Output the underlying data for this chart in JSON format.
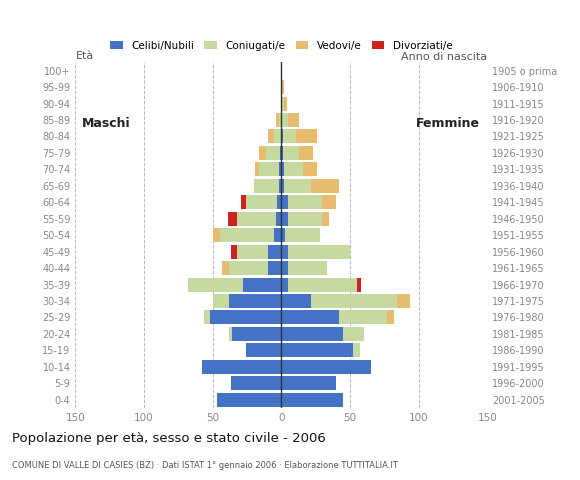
{
  "age_groups": [
    "0-4",
    "5-9",
    "10-14",
    "15-19",
    "20-24",
    "25-29",
    "30-34",
    "35-39",
    "40-44",
    "45-49",
    "50-54",
    "55-59",
    "60-64",
    "65-69",
    "70-74",
    "75-79",
    "80-84",
    "85-89",
    "90-94",
    "95-99",
    "100+"
  ],
  "birth_years": [
    "2001-2005",
    "1996-2000",
    "1991-1995",
    "1986-1990",
    "1981-1985",
    "1976-1980",
    "1971-1975",
    "1966-1970",
    "1961-1965",
    "1956-1960",
    "1951-1955",
    "1946-1950",
    "1941-1945",
    "1936-1940",
    "1931-1935",
    "1926-1930",
    "1921-1925",
    "1916-1920",
    "1911-1915",
    "1906-1910",
    "1905 o prima"
  ],
  "male": {
    "celibe": [
      47,
      37,
      58,
      26,
      36,
      52,
      38,
      28,
      10,
      10,
      5,
      4,
      3,
      2,
      2,
      1,
      0,
      0,
      0,
      0,
      0
    ],
    "coniugato": [
      0,
      0,
      0,
      0,
      2,
      4,
      12,
      40,
      28,
      22,
      40,
      28,
      23,
      18,
      14,
      10,
      5,
      2,
      0,
      0,
      0
    ],
    "vedovo": [
      0,
      0,
      0,
      0,
      0,
      0,
      0,
      0,
      5,
      0,
      5,
      0,
      0,
      0,
      3,
      5,
      5,
      2,
      0,
      0,
      0
    ],
    "divorziato": [
      0,
      0,
      0,
      0,
      0,
      0,
      0,
      0,
      0,
      5,
      0,
      7,
      3,
      0,
      0,
      0,
      0,
      0,
      0,
      0,
      0
    ]
  },
  "female": {
    "nubile": [
      45,
      40,
      65,
      52,
      45,
      42,
      22,
      5,
      5,
      5,
      3,
      5,
      5,
      2,
      2,
      1,
      1,
      0,
      0,
      0,
      0
    ],
    "coniugata": [
      0,
      0,
      0,
      5,
      15,
      35,
      62,
      50,
      28,
      45,
      25,
      25,
      25,
      20,
      14,
      12,
      10,
      5,
      2,
      0,
      0
    ],
    "vedova": [
      0,
      0,
      0,
      0,
      0,
      5,
      10,
      0,
      0,
      0,
      0,
      5,
      10,
      20,
      10,
      10,
      15,
      8,
      2,
      2,
      0
    ],
    "divorziata": [
      0,
      0,
      0,
      0,
      0,
      0,
      0,
      3,
      0,
      0,
      0,
      0,
      0,
      0,
      0,
      0,
      0,
      0,
      0,
      0,
      0
    ]
  },
  "colors": {
    "celibe": "#4472c4",
    "coniugato": "#c5d9a0",
    "vedovo": "#e8bc6e",
    "divorziato": "#cc2222"
  },
  "xlim": 150,
  "title": "Popolazione per età, sesso e stato civile - 2006",
  "subtitle": "COMUNE DI VALLE DI CASIES (BZ) · Dati ISTAT 1° gennaio 2006 · Elaborazione TUTTITALIA.IT",
  "label_eta": "Età",
  "label_anno": "Anno di nascita",
  "label_maschi": "Maschi",
  "label_femmine": "Femmine",
  "background_color": "#ffffff",
  "grid_color": "#bbbbbb",
  "tick_color": "#888888",
  "bar_height": 0.85,
  "legend_labels": [
    "Celibi/Nubili",
    "Coniugati/e",
    "Vedovi/e",
    "Divorziati/e"
  ]
}
